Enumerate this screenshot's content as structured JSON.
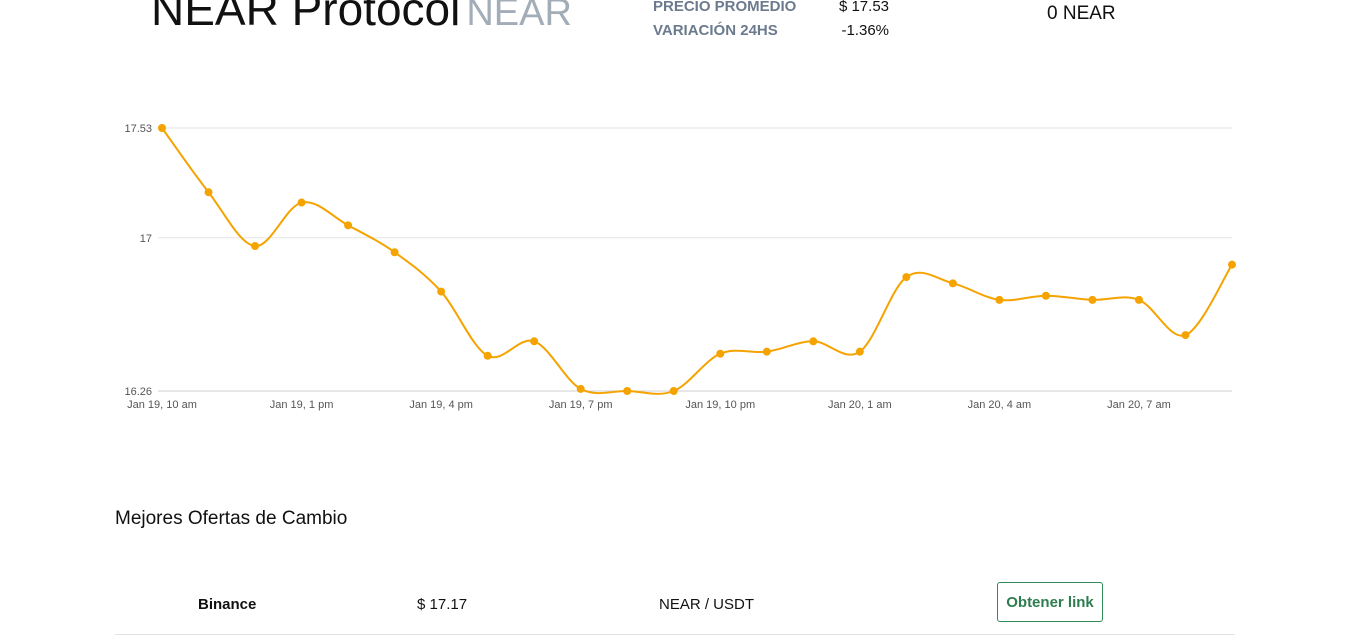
{
  "coin": {
    "name": "NEAR Protocol",
    "symbol": "NEAR"
  },
  "stats": {
    "avg_label": "PRECIO PROMEDIO",
    "avg_value": "$ 17.53",
    "change_label": "VARIACIÓN 24HS",
    "change_value": "-1.36%"
  },
  "holdings": "0 NEAR",
  "chart_data": {
    "type": "line",
    "title": "",
    "xlabel": "",
    "ylabel": "",
    "ylim": [
      16.26,
      17.53
    ],
    "ytick_labels": [
      "17.53",
      "17",
      "16.26"
    ],
    "yticks": [
      17.53,
      17,
      16.26
    ],
    "x_tick_labels": [
      "Jan 19, 10 am",
      "Jan 19, 1 pm",
      "Jan 19, 4 pm",
      "Jan 19, 7 pm",
      "Jan 19, 10 pm",
      "Jan 20, 1 am",
      "Jan 20, 4 am",
      "Jan 20, 7 am"
    ],
    "x_interval_hours": 1,
    "color": "#f5a300",
    "grid": true,
    "series": [
      {
        "values": [
          17.53,
          17.22,
          16.96,
          17.17,
          17.06,
          16.93,
          16.74,
          16.43,
          16.5,
          16.27,
          16.26,
          16.26,
          16.44,
          16.45,
          16.5,
          16.45,
          16.81,
          16.78,
          16.7,
          16.72,
          16.7,
          16.7,
          16.53,
          16.87
        ]
      }
    ]
  },
  "offers": {
    "title": "Mejores Ofertas de Cambio",
    "rows": [
      {
        "exchange": "Binance",
        "price": "$ 17.17",
        "pair": "NEAR / USDT",
        "button": "Obtener link"
      }
    ]
  }
}
